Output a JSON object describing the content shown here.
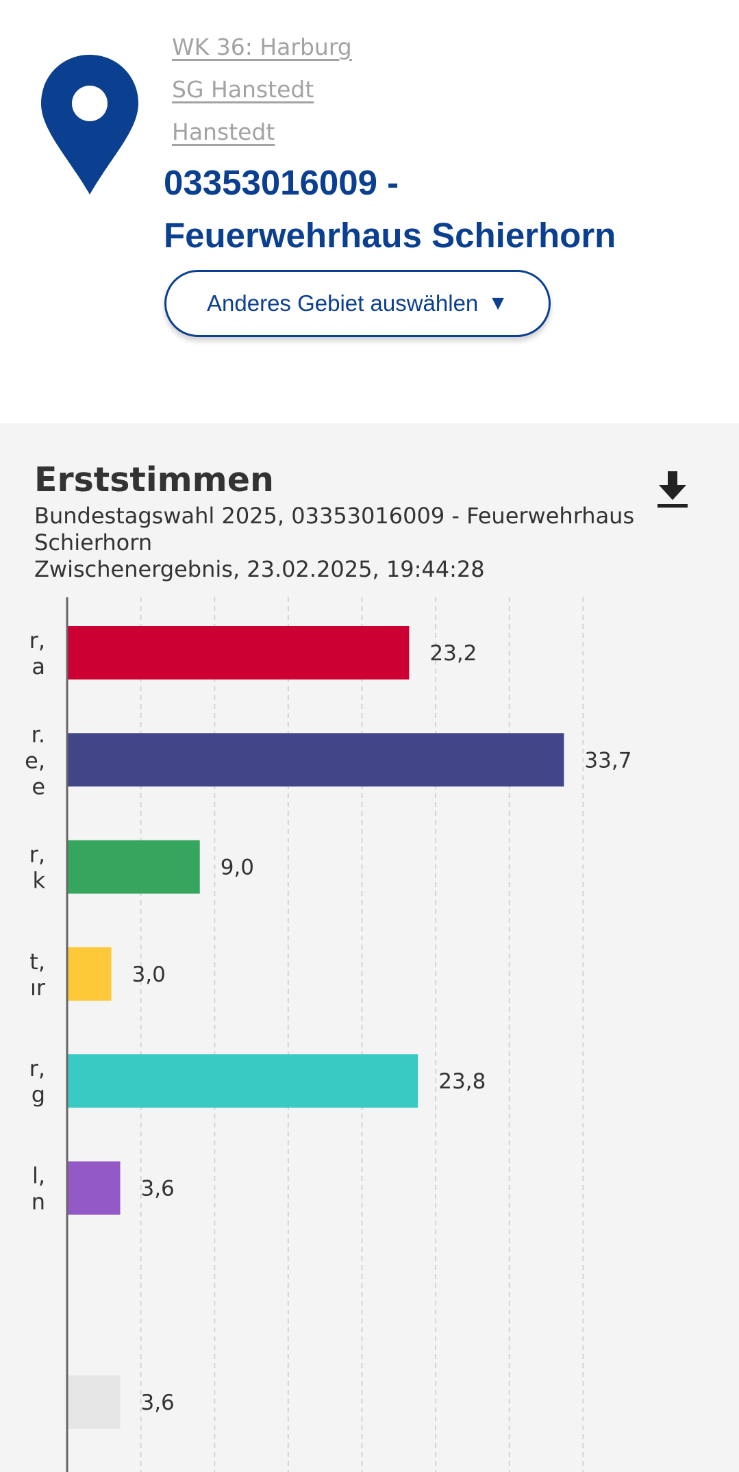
{
  "nav": {
    "prev_icon": "chevron-left-icon",
    "next_icon": "chevron-right-icon"
  },
  "location": {
    "icon": "map-pin-icon",
    "breadcrumb": [
      "WK 36: Harburg",
      "SG Hanstedt",
      "Hanstedt"
    ],
    "title_line1": "03353016009 -",
    "title_line2": "Feuerwehrhaus Schierhorn",
    "change_area_label": "Anderes Gebiet auswählen",
    "change_area_caret": "▼"
  },
  "colors": {
    "brand": "#0b3f8f",
    "panel_background": "#f4f4f4"
  },
  "chart_data": {
    "type": "bar",
    "orientation": "horizontal",
    "title": "Erststimmen",
    "subtitle_line1": "Bundestagswahl 2025, 03353016009 - Feuerwehrhaus",
    "subtitle_line2": "Schierhorn",
    "subtitle_line3": "Zwischenergebnis, 23.02.2025, 19:44:28",
    "download_icon": "download-icon",
    "xlim": [
      0,
      40
    ],
    "grid": true,
    "grid_style": "dashed vertical",
    "category_label_fragments": [
      [
        "r,",
        "a"
      ],
      [
        "r.",
        "e,",
        "e"
      ],
      [
        "r,",
        "k"
      ],
      [
        "t,",
        "ır"
      ],
      [
        "r,",
        "g"
      ],
      [
        "l,",
        "n"
      ],
      [],
      []
    ],
    "values": [
      23.2,
      33.7,
      9.0,
      3.0,
      23.8,
      3.6,
      null,
      3.6
    ],
    "value_labels": [
      "23,2",
      "33,7",
      "9,0",
      "3,0",
      "23,8",
      "3,6",
      "",
      "3,6"
    ],
    "colors": [
      "#cc0033",
      "#434589",
      "#36a55e",
      "#fec939",
      "#39cbc3",
      "#9259c7",
      "#f4f4f4",
      "#e6e6e6"
    ]
  }
}
